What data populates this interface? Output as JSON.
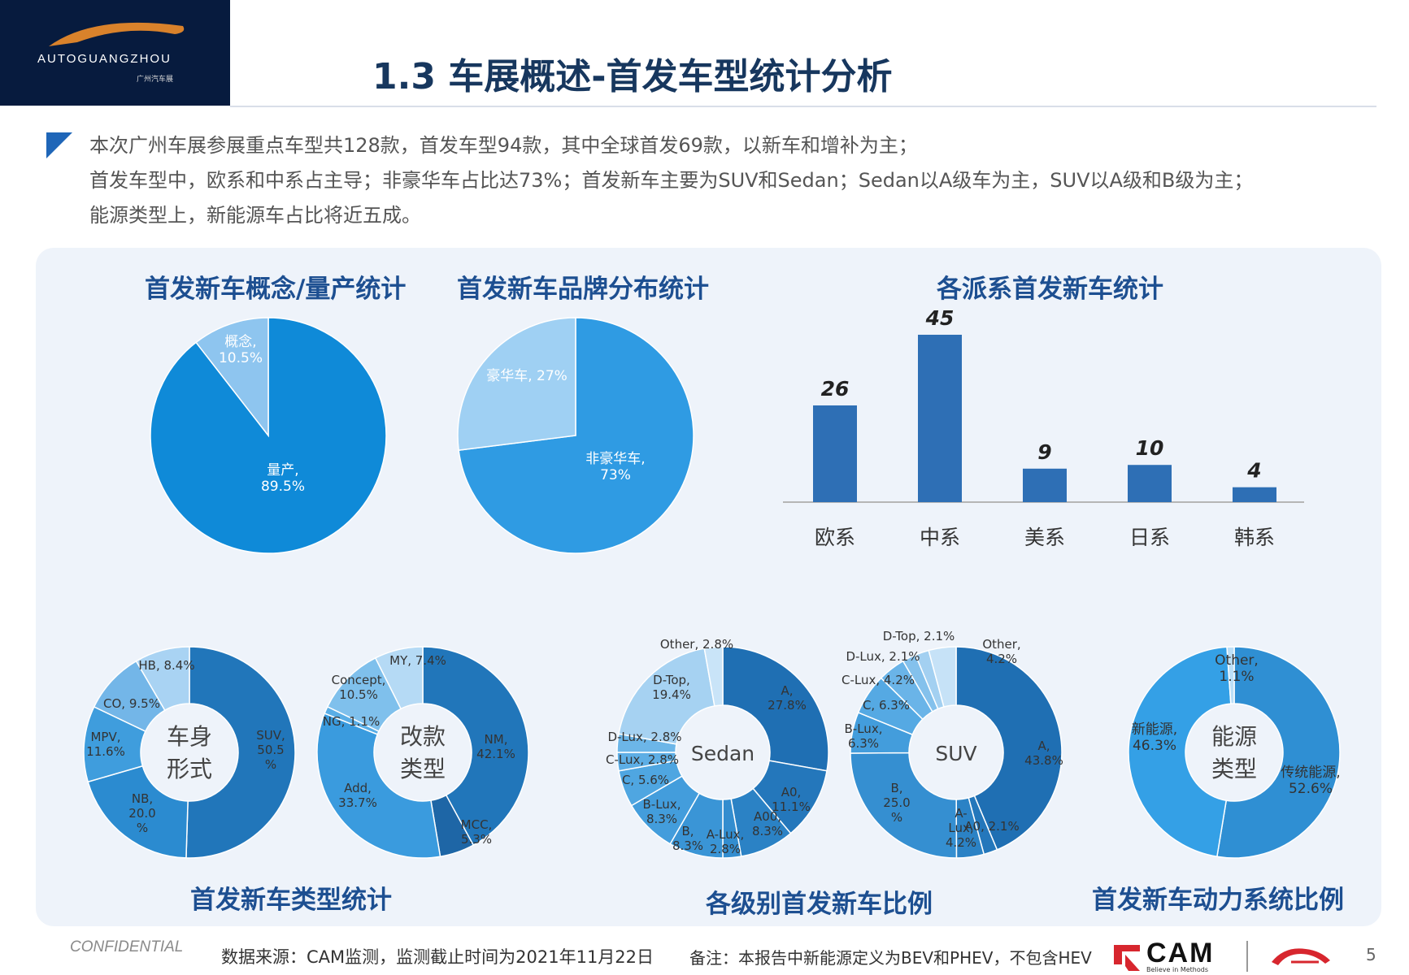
{
  "header": {
    "logo_text": "AUTOGUANGZHOU",
    "logo_sub": "广州汽车展",
    "title": "1.3 车展概述-首发车型统计分析"
  },
  "summary": {
    "line1": "本次广州车展参展重点车型共128款，首发车型94款，其中全球首发69款，以新车和增补为主；",
    "line2": "首发车型中，欧系和中系占主导；非豪华车占比达73%；首发新车主要为SUV和Sedan；Sedan以A级车为主，SUV以A级和B级为主；",
    "line3": "能源类型上，新能源车占比将近五成。"
  },
  "panels": {
    "concept_title": "首发新车概念/量产统计",
    "brand_title": "首发新车品牌分布统计",
    "region_title": "各派系首发新车统计",
    "type_title": "首发新车类型统计",
    "level_title": "各级别首发新车比例",
    "power_title": "首发新车动力系统比例"
  },
  "chart_data": [
    {
      "id": "concept",
      "type": "pie",
      "title": "首发新车概念/量产统计",
      "slices": [
        {
          "label": "量产",
          "value": 89.5,
          "text": "量产,",
          "pct": "89.5%",
          "color": "#0f8ad8"
        },
        {
          "label": "概念",
          "value": 10.5,
          "text": "概念,",
          "pct": "10.5%",
          "color": "#8ec5ef"
        }
      ]
    },
    {
      "id": "brand",
      "type": "pie",
      "title": "首发新车品牌分布统计",
      "slices": [
        {
          "label": "非豪华车",
          "value": 73,
          "text": "非豪华车,",
          "pct": "73%",
          "color": "#2f9be3"
        },
        {
          "label": "豪华车",
          "value": 27,
          "text": "豪华车, 27%",
          "pct": "",
          "color": "#9fd0f3"
        }
      ]
    },
    {
      "id": "region",
      "type": "bar",
      "title": "各派系首发新车统计",
      "categories": [
        "欧系",
        "中系",
        "美系",
        "日系",
        "韩系"
      ],
      "values": [
        26,
        45,
        9,
        10,
        4
      ],
      "ylim": [
        0,
        45
      ],
      "color": "#2e6fb5"
    },
    {
      "id": "body",
      "type": "pie",
      "subtype": "donut",
      "center": [
        "车身",
        "形式"
      ],
      "slices": [
        {
          "label": "SUV",
          "value": 50.5,
          "color": "#2176ba"
        },
        {
          "label": "NB",
          "value": 20.0,
          "color": "#2b8bd0"
        },
        {
          "label": "MPV",
          "value": 11.6,
          "color": "#3f9ddd"
        },
        {
          "label": "CO",
          "value": 9.5,
          "color": "#73b6e8"
        },
        {
          "label": "HB",
          "value": 8.4,
          "color": "#a9d3f3"
        }
      ],
      "labels": [
        {
          "lines": [
            "SUV,",
            "50.5",
            "%"
          ]
        },
        {
          "lines": [
            "NB,",
            "20.0",
            "%"
          ]
        },
        {
          "lines": [
            "MPV,",
            "11.6%"
          ]
        },
        {
          "lines": [
            "CO, 9.5%"
          ]
        },
        {
          "lines": [
            "HB, 8.4%"
          ]
        }
      ]
    },
    {
      "id": "revision",
      "type": "pie",
      "subtype": "donut",
      "center": [
        "改款",
        "类型"
      ],
      "slices": [
        {
          "label": "NM",
          "value": 42.1,
          "color": "#2176ba"
        },
        {
          "label": "MCC",
          "value": 5.3,
          "color": "#1e66a6"
        },
        {
          "label": "Add",
          "value": 33.7,
          "color": "#3a9bde"
        },
        {
          "label": "NG",
          "value": 1.1,
          "color": "#5aaee6"
        },
        {
          "label": "Concept",
          "value": 10.5,
          "color": "#7fc0ec"
        },
        {
          "label": "MY",
          "value": 7.4,
          "color": "#b5daf5"
        }
      ],
      "labels": [
        {
          "lines": [
            "NM,",
            "42.1%"
          ]
        },
        {
          "lines": [
            "MCC,",
            "5.3%"
          ]
        },
        {
          "lines": [
            "Add,",
            "33.7%"
          ]
        },
        {
          "lines": [
            "NG, 1.1%"
          ]
        },
        {
          "lines": [
            "Concept,",
            "10.5%"
          ]
        },
        {
          "lines": [
            "MY, 7.4%"
          ]
        }
      ]
    },
    {
      "id": "sedan",
      "type": "pie",
      "subtype": "donut",
      "center": [
        "Sedan"
      ],
      "slices": [
        {
          "label": "A",
          "value": 27.8,
          "color": "#1f6fb3"
        },
        {
          "label": "A0",
          "value": 11.1,
          "color": "#2477bb"
        },
        {
          "label": "A00",
          "value": 8.3,
          "color": "#2b82c5"
        },
        {
          "label": "A-Lux",
          "value": 2.8,
          "color": "#338dcf"
        },
        {
          "label": "B",
          "value": 8.3,
          "color": "#3a95d6"
        },
        {
          "label": "B-Lux",
          "value": 8.3,
          "color": "#439ddc"
        },
        {
          "label": "C",
          "value": 5.6,
          "color": "#4fa6e1"
        },
        {
          "label": "C-Lux",
          "value": 2.8,
          "color": "#5daee5"
        },
        {
          "label": "D-Lux",
          "value": 2.8,
          "color": "#6cb6e8"
        },
        {
          "label": "D-Top",
          "value": 19.4,
          "color": "#a6d2f2"
        },
        {
          "label": "Other",
          "value": 2.8,
          "color": "#c9e4f8"
        }
      ],
      "labels": [
        {
          "lines": [
            "A,",
            "27.8%"
          ]
        },
        {
          "lines": [
            "A0,",
            "11.1%"
          ]
        },
        {
          "lines": [
            "A00,",
            "8.3%"
          ]
        },
        {
          "lines": [
            "A-Lux,",
            "2.8%"
          ]
        },
        {
          "lines": [
            "B,",
            "8.3%"
          ]
        },
        {
          "lines": [
            "B-Lux,",
            "8.3%"
          ]
        },
        {
          "lines": [
            "C, 5.6%"
          ]
        },
        {
          "lines": [
            "C-Lux, 2.8%"
          ]
        },
        {
          "lines": [
            "D-Lux, 2.8%"
          ]
        },
        {
          "lines": [
            "D-Top,",
            "19.4%"
          ]
        },
        {
          "lines": [
            "Other, 2.8%"
          ]
        }
      ]
    },
    {
      "id": "suv",
      "type": "pie",
      "subtype": "donut",
      "center": [
        "SUV"
      ],
      "slices": [
        {
          "label": "A",
          "value": 43.8,
          "color": "#1f6fb3"
        },
        {
          "label": "A0",
          "value": 2.1,
          "color": "#2477bb"
        },
        {
          "label": "A-Lux",
          "value": 4.2,
          "color": "#2b82c5"
        },
        {
          "label": "B",
          "value": 25.0,
          "color": "#358fd1"
        },
        {
          "label": "B-Lux",
          "value": 6.3,
          "color": "#439ddc"
        },
        {
          "label": "C",
          "value": 6.3,
          "color": "#55a9e3"
        },
        {
          "label": "C-Lux",
          "value": 4.2,
          "color": "#6ab4e8"
        },
        {
          "label": "D-Lux",
          "value": 2.1,
          "color": "#84c1ec"
        },
        {
          "label": "D-Top",
          "value": 2.1,
          "color": "#a3d0f1"
        },
        {
          "label": "Other",
          "value": 4.2,
          "color": "#c6e2f7"
        }
      ],
      "labels": [
        {
          "lines": [
            "A,",
            "43.8%"
          ]
        },
        {
          "lines": [
            "A0, 2.1%"
          ]
        },
        {
          "lines": [
            "A-",
            "Lux,",
            "4.2%"
          ]
        },
        {
          "lines": [
            "B,",
            "25.0",
            "%"
          ]
        },
        {
          "lines": [
            "B-Lux,",
            "6.3%"
          ]
        },
        {
          "lines": [
            "C, 6.3%"
          ]
        },
        {
          "lines": [
            "C-Lux, 4.2%"
          ]
        },
        {
          "lines": [
            "D-Lux, 2.1%"
          ]
        },
        {
          "lines": [
            "D-Top, 2.1%"
          ]
        },
        {
          "lines": [
            "Other,",
            "4.2%"
          ]
        }
      ]
    },
    {
      "id": "power",
      "type": "pie",
      "subtype": "donut",
      "center": [
        "能源",
        "类型"
      ],
      "slices": [
        {
          "label": "传统能源",
          "value": 52.6,
          "color": "#2f8fd3"
        },
        {
          "label": "新能源",
          "value": 46.3,
          "color": "#34a0e6"
        },
        {
          "label": "Other",
          "value": 1.1,
          "color": "#bcdff7"
        }
      ],
      "labels": [
        {
          "lines": [
            "传统能源,",
            "52.6%"
          ]
        },
        {
          "lines": [
            "新能源,",
            "46.3%"
          ]
        },
        {
          "lines": [
            "Other,",
            "1.1%"
          ]
        }
      ]
    }
  ],
  "footer": {
    "confidential": "CONFIDENTIAL",
    "source": "数据来源：CAM监测，监测截止时间为2021年11月22日",
    "note": "备注：本报告中新能源定义为BEV和PHEV，不包含HEV",
    "brand": "CAM",
    "tagline": "Believe in Methods",
    "page": "5"
  }
}
